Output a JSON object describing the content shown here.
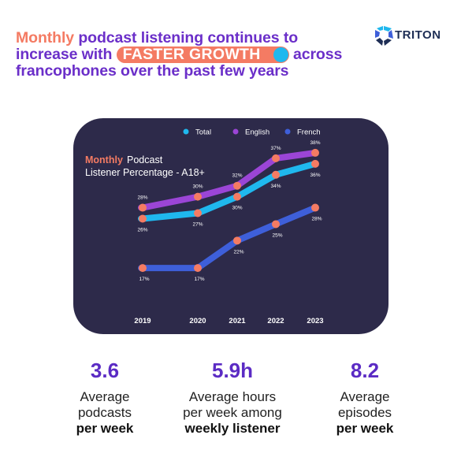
{
  "headline": {
    "accent": "Monthly",
    "part1": " podcast listening continues to increase with ",
    "highlight": "FASTER GROWTH",
    "part2": " across francophones over the past few years"
  },
  "logo": {
    "text": "TRITON"
  },
  "chart_data": {
    "type": "line",
    "title_accent": "Monthly",
    "title_rest": " Podcast",
    "title_line2": "Listener Percentage - A18+",
    "categories": [
      "2019",
      "2020",
      "2021",
      "2022",
      "2023"
    ],
    "legend_position": "top",
    "series": [
      {
        "name": "Total",
        "color": "#1FB8EE",
        "values": [
          26,
          27,
          30,
          34,
          36
        ],
        "labels": [
          "26%",
          "27%",
          "30%",
          "34%",
          "36%"
        ],
        "label_position": "below"
      },
      {
        "name": "English",
        "color": "#9B45D6",
        "values": [
          28,
          30,
          32,
          37,
          38
        ],
        "labels": [
          "28%",
          "30%",
          "32%",
          "37%",
          "38%"
        ],
        "label_position": "above"
      },
      {
        "name": "French",
        "color": "#3E5FD9",
        "values": [
          17,
          17,
          22,
          25,
          28
        ],
        "labels": [
          "17%",
          "17%",
          "22%",
          "25%",
          "28%"
        ],
        "label_position": "below-right"
      }
    ],
    "ylim": [
      13,
      40
    ],
    "grid": false,
    "marker_color": "#F47B63"
  },
  "stats": [
    {
      "value": "3.6",
      "line1": "Average",
      "line2": "podcasts",
      "bold": "per week"
    },
    {
      "value": "5.9h",
      "line1": "Average hours",
      "line2": "per week among",
      "bold": "weekly listener"
    },
    {
      "value": "8.2",
      "line1": "Average",
      "line2": "episodes",
      "bold": "per week"
    }
  ]
}
